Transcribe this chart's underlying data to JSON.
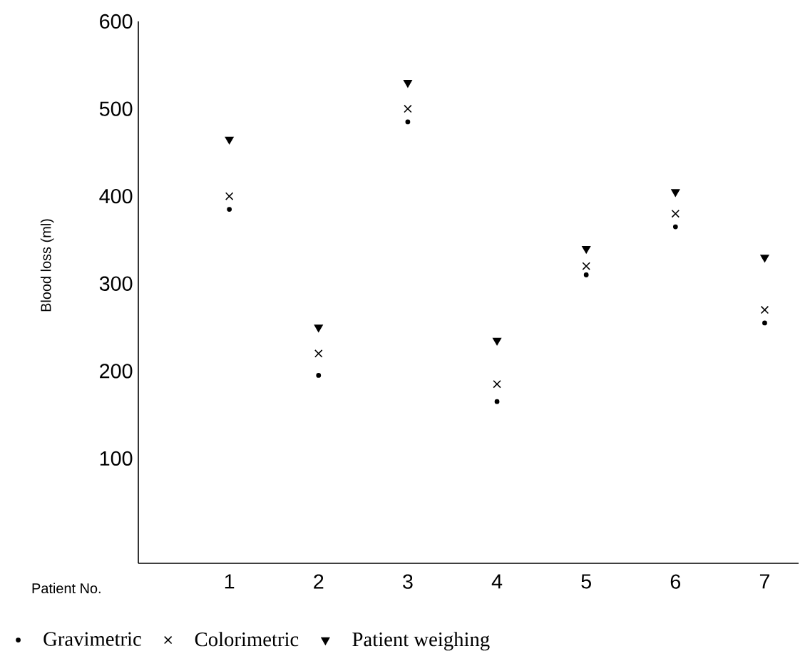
{
  "chart_data": {
    "type": "scatter",
    "xlabel": "Patient No.",
    "ylabel": "Blood loss (ml)",
    "categories": [
      "1",
      "2",
      "3",
      "4",
      "5",
      "6",
      "7"
    ],
    "ylim": [
      -20,
      600
    ],
    "yticks": [
      100,
      200,
      300,
      400,
      500,
      600
    ],
    "grid": false,
    "legend": "bottom",
    "series": [
      {
        "name": "Gravimetric",
        "color": "#000000",
        "marker": "circle",
        "values": [
          385,
          195,
          485,
          165,
          310,
          365,
          255
        ]
      },
      {
        "name": "Colorimetric",
        "color": "#000000",
        "marker": "cross",
        "values": [
          400,
          220,
          500,
          185,
          320,
          380,
          270
        ]
      },
      {
        "name": "Patient weighing",
        "color": "#000000",
        "marker": "triangle",
        "values": [
          465,
          250,
          530,
          235,
          340,
          405,
          330
        ]
      }
    ]
  }
}
